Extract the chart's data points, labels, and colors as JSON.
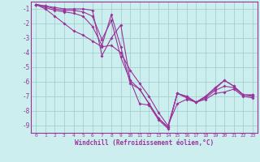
{
  "xlabel": "Windchill (Refroidissement éolien,°C)",
  "bg_color": "#cceeee",
  "grid_color": "#99cccc",
  "line_color": "#993399",
  "spine_color": "#993399",
  "tick_color": "#993399",
  "label_color": "#993399",
  "xlim": [
    -0.5,
    23.5
  ],
  "ylim": [
    -9.5,
    -0.5
  ],
  "yticks": [
    -9,
    -8,
    -7,
    -6,
    -5,
    -4,
    -3,
    -2,
    -1
  ],
  "xticks": [
    0,
    1,
    2,
    3,
    4,
    5,
    6,
    7,
    8,
    9,
    10,
    11,
    12,
    13,
    14,
    15,
    16,
    17,
    18,
    19,
    20,
    21,
    22,
    23
  ],
  "lines": [
    {
      "x": [
        0,
        1,
        2,
        3,
        4,
        5,
        6,
        7,
        8,
        9,
        10,
        11,
        12,
        13,
        14,
        15,
        16,
        17,
        18,
        19,
        20,
        21,
        22,
        23
      ],
      "y": [
        -0.7,
        -0.8,
        -0.9,
        -1.0,
        -1.0,
        -1.0,
        -1.1,
        -4.2,
        -3.0,
        -2.1,
        -5.9,
        -7.5,
        -7.6,
        -8.6,
        -9.2,
        -6.8,
        -7.0,
        -7.4,
        -7.0,
        -6.4,
        -5.9,
        -6.3,
        -6.9,
        -6.9
      ]
    },
    {
      "x": [
        0,
        1,
        2,
        3,
        4,
        5,
        6,
        7,
        8,
        9,
        10,
        11,
        12,
        13,
        14,
        15,
        16,
        17,
        18,
        19,
        20,
        21,
        22,
        23
      ],
      "y": [
        -0.7,
        -0.8,
        -1.0,
        -1.1,
        -1.1,
        -1.2,
        -1.5,
        -3.1,
        -1.8,
        -4.3,
        -5.9,
        -6.5,
        -7.5,
        -8.5,
        -9.1,
        -6.8,
        -7.0,
        -7.4,
        -7.0,
        -6.5,
        -5.9,
        -6.3,
        -6.9,
        -6.9
      ]
    },
    {
      "x": [
        0,
        1,
        2,
        3,
        4,
        5,
        6,
        7,
        8,
        9,
        10,
        11,
        12,
        13,
        14,
        15,
        16,
        17,
        18,
        19,
        20,
        21,
        22,
        23
      ],
      "y": [
        -0.7,
        -0.9,
        -1.1,
        -1.2,
        -1.3,
        -1.5,
        -2.2,
        -3.5,
        -1.4,
        -3.6,
        -6.1,
        -6.5,
        -7.5,
        -8.5,
        -9.1,
        -6.8,
        -7.1,
        -7.4,
        -7.1,
        -6.6,
        -6.3,
        -6.4,
        -6.9,
        -7.0
      ]
    },
    {
      "x": [
        0,
        1,
        2,
        3,
        4,
        5,
        6,
        7,
        8,
        9,
        10,
        11,
        12,
        13,
        14,
        15,
        16,
        17,
        18,
        19,
        20,
        21,
        22,
        23
      ],
      "y": [
        -0.7,
        -1.0,
        -1.5,
        -2.0,
        -2.5,
        -2.8,
        -3.2,
        -3.6,
        -3.5,
        -4.0,
        -5.2,
        -6.1,
        -7.0,
        -8.1,
        -9.0,
        -7.5,
        -7.2,
        -7.4,
        -7.2,
        -6.8,
        -6.7,
        -6.5,
        -7.0,
        -7.1
      ]
    }
  ]
}
